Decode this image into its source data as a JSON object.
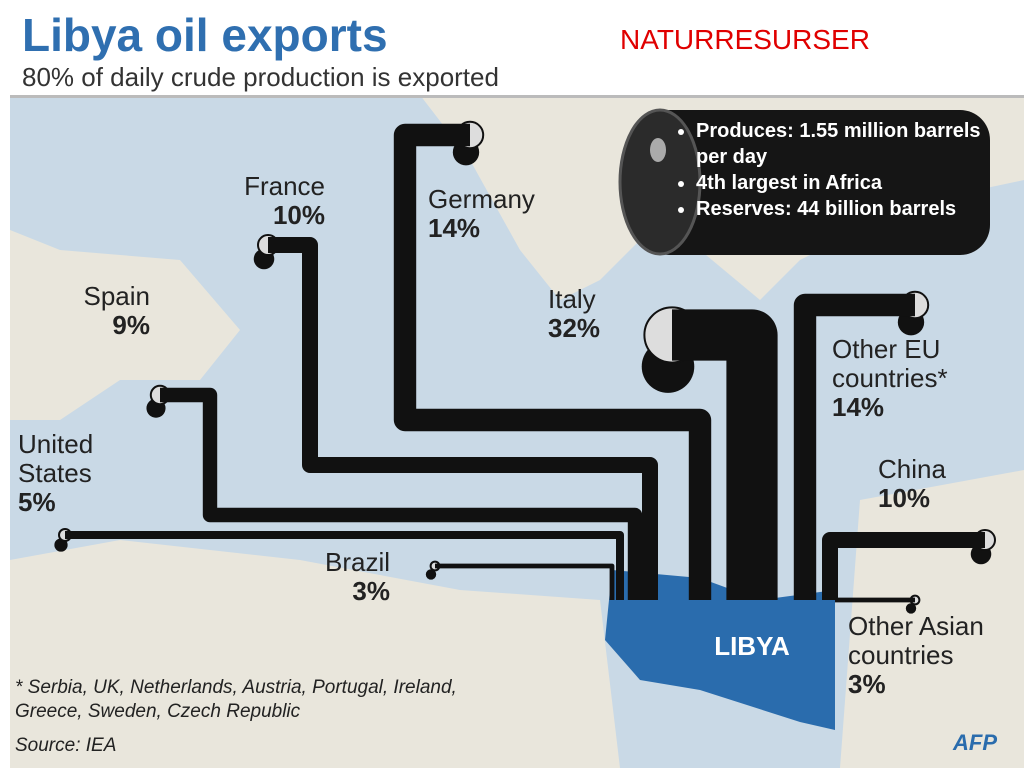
{
  "header": "NATURRESURSER",
  "chart_data": {
    "type": "flow",
    "title": "Libya oil exports",
    "subtitle": "80% of daily crude production is exported",
    "categories": [
      "France",
      "Germany",
      "Spain",
      "Italy",
      "Other EU countries*",
      "United States",
      "China",
      "Brazil",
      "Other Asian countries"
    ],
    "values": [
      10,
      14,
      9,
      32,
      14,
      5,
      10,
      3,
      3
    ],
    "value_labels": [
      "10%",
      "14%",
      "9%",
      "32%",
      "14%",
      "5%",
      "10%",
      "3%",
      "3%"
    ],
    "color": "#111111",
    "origin": "LIBYA",
    "notes": [
      "Produces: 1.55 million barrels per day",
      "4th largest in Africa",
      "Reserves: 44 billion barrels"
    ],
    "footnote": "* Serbia, UK, Netherlands, Austria, Portugal, Ireland, Greece, Sweden, Czech Republic",
    "source": "Source: IEA",
    "credit": "AFP"
  }
}
